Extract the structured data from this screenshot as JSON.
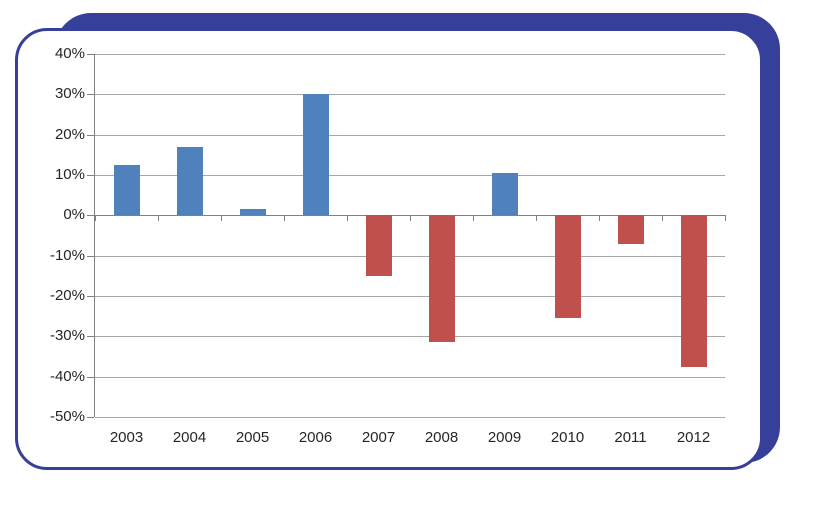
{
  "frame": {
    "shadow_color": "#36409A",
    "border_color": "#36409A",
    "panel_background": "#FFFFFF"
  },
  "chart_data": {
    "type": "bar",
    "title": "",
    "xlabel": "",
    "ylabel": "",
    "categories": [
      "2003",
      "2004",
      "2005",
      "2006",
      "2007",
      "2008",
      "2009",
      "2010",
      "2011",
      "2012"
    ],
    "values": [
      12.5,
      17,
      1.5,
      30,
      -15,
      -31.5,
      10.5,
      -25.5,
      -7,
      -37.5
    ],
    "ylim": [
      -50,
      40
    ],
    "y_ticks": [
      {
        "value": 40,
        "label": "40%"
      },
      {
        "value": 30,
        "label": "30%"
      },
      {
        "value": 20,
        "label": "20%"
      },
      {
        "value": 10,
        "label": "10%"
      },
      {
        "value": 0,
        "label": "0%"
      },
      {
        "value": -10,
        "label": "-10%"
      },
      {
        "value": -20,
        "label": "-20%"
      },
      {
        "value": -30,
        "label": "-30%"
      },
      {
        "value": -40,
        "label": "-40%"
      },
      {
        "value": -50,
        "label": "-50%"
      }
    ],
    "grid": true,
    "legend": "none",
    "colors": {
      "positive": "#4F81BD",
      "negative": "#C0504D",
      "gridline": "#A6A6A6",
      "axis": "#808080",
      "text": "#262626"
    }
  }
}
